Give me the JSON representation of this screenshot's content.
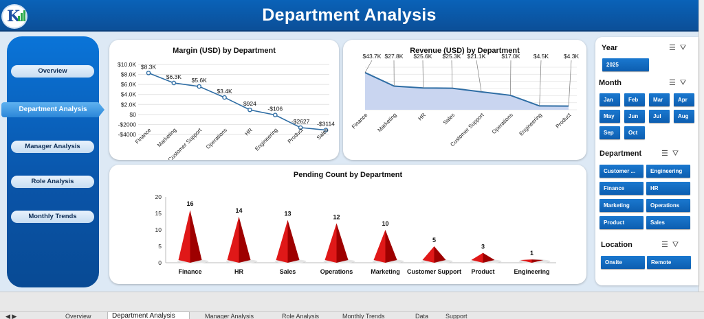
{
  "header": {
    "title": "Department Analysis"
  },
  "sidebar": {
    "items": [
      {
        "label": "Overview"
      },
      {
        "label": "Department Analysis"
      },
      {
        "label": "Manager Analysis"
      },
      {
        "label": "Role Analysis"
      },
      {
        "label": "Monthly Trends"
      }
    ]
  },
  "charts": {
    "margin": {
      "title": "Margin (USD) by Department"
    },
    "revenue": {
      "title": "Revenue (USD) by Department"
    },
    "pending": {
      "title": "Pending Count by Department"
    }
  },
  "chart_data": [
    {
      "type": "line",
      "title": "Margin (USD) by Department",
      "categories": [
        "Finance",
        "Marketing",
        "Customer Support",
        "Operations",
        "HR",
        "Engineering",
        "Product",
        "Sales"
      ],
      "values": [
        8300,
        6300,
        5600,
        3400,
        924,
        -106,
        -2627,
        -3114
      ],
      "data_labels": [
        "$8.3K",
        "$6.3K",
        "$5.6K",
        "$3.4K",
        "$924",
        "-$106",
        "-$2627",
        "-$3114"
      ],
      "yticks": [
        "$10.0K",
        "$8.0K",
        "$6.0K",
        "$4.0K",
        "$2.0K",
        "$0",
        "-$2000",
        "-$4000"
      ],
      "ylim": [
        -4000,
        10000
      ],
      "grid": true,
      "color": "#2e6da4"
    },
    {
      "type": "area",
      "title": "Revenue (USD) by Department",
      "categories": [
        "Finance",
        "Marketing",
        "HR",
        "Sales",
        "Customer Support",
        "Operations",
        "Engineering",
        "Product"
      ],
      "values": [
        43700,
        27800,
        25600,
        25300,
        21100,
        17000,
        4500,
        4300
      ],
      "data_labels": [
        "$43.7K",
        "$27.8K",
        "$25.6K",
        "$25.3K",
        "$21.1K",
        "$17.0K",
        "$4.5K",
        "$4.3K"
      ],
      "ylim": [
        0,
        50000
      ],
      "grid": true,
      "color": "#2e6da4",
      "fill": "#c9d5f0"
    },
    {
      "type": "bar",
      "title": "Pending Count by Department",
      "categories": [
        "Finance",
        "HR",
        "Sales",
        "Operations",
        "Marketing",
        "Customer Support",
        "Product",
        "Engineering"
      ],
      "values": [
        16,
        14,
        13,
        12,
        10,
        5,
        3,
        1
      ],
      "yticks": [
        "20",
        "15",
        "10",
        "5",
        "0"
      ],
      "ylim": [
        0,
        20
      ],
      "color": "#cc0000"
    }
  ],
  "slicers": {
    "year": {
      "title": "Year",
      "items": [
        "2025"
      ]
    },
    "month": {
      "title": "Month",
      "items": [
        "Jan",
        "Feb",
        "Mar",
        "Apr",
        "May",
        "Jun",
        "Jul",
        "Aug",
        "Sep",
        "Oct"
      ]
    },
    "department": {
      "title": "Department",
      "items": [
        "Customer ...",
        "Engineering",
        "Finance",
        "HR",
        "Marketing",
        "Operations",
        "Product",
        "Sales"
      ]
    },
    "location": {
      "title": "Location",
      "items": [
        "Onsite",
        "Remote"
      ]
    }
  },
  "sheet_tabs": {
    "active": "Department Analysis",
    "others": [
      "Overview",
      "Manager Analysis",
      "Role Analysis",
      "Monthly Trends",
      "Data",
      "Support"
    ]
  },
  "colors": {
    "header": "#0b5aa8",
    "sidebar": "#0a60bd",
    "chip": "#1469bd",
    "pending_bar": "#cc0000",
    "line": "#2e6da4"
  }
}
